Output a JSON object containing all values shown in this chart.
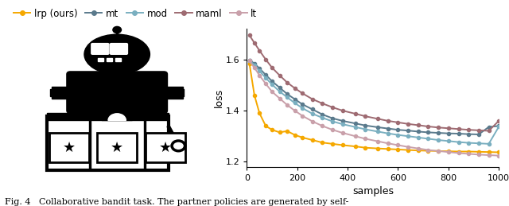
{
  "legend_entries": [
    "lrp (ours)",
    "mt",
    "mod",
    "maml",
    "lt"
  ],
  "colors": {
    "lrp": "#f5a800",
    "mt": "#5a7a8c",
    "mod": "#7aafc0",
    "maml": "#9e6b72",
    "lt": "#c9a0aa"
  },
  "xlabel": "samples",
  "ylabel": "loss",
  "xlim": [
    0,
    1000
  ],
  "ylim": [
    1.18,
    1.72
  ],
  "yticks": [
    1.2,
    1.4,
    1.6
  ],
  "xticks": [
    0,
    200,
    400,
    600,
    800,
    1000
  ],
  "caption": "Fig. 4   Collaborative bandit task. The partner policies are generated by self-",
  "lrp_x": [
    10,
    30,
    50,
    75,
    100,
    130,
    160,
    190,
    220,
    260,
    300,
    340,
    380,
    430,
    470,
    520,
    560,
    600,
    640,
    680,
    720,
    760,
    800,
    840,
    880,
    920,
    960,
    1000
  ],
  "lrp_y": [
    1.585,
    1.46,
    1.39,
    1.34,
    1.325,
    1.315,
    1.32,
    1.305,
    1.295,
    1.285,
    1.275,
    1.27,
    1.265,
    1.26,
    1.255,
    1.252,
    1.25,
    1.248,
    1.246,
    1.244,
    1.243,
    1.242,
    1.241,
    1.24,
    1.24,
    1.239,
    1.238,
    1.237
  ],
  "mt_x": [
    10,
    30,
    50,
    75,
    100,
    130,
    160,
    190,
    220,
    260,
    300,
    340,
    380,
    430,
    470,
    520,
    560,
    600,
    640,
    680,
    720,
    760,
    800,
    840,
    880,
    920,
    960,
    1000
  ],
  "mt_y": [
    1.597,
    1.585,
    1.565,
    1.54,
    1.515,
    1.49,
    1.465,
    1.445,
    1.425,
    1.405,
    1.385,
    1.37,
    1.36,
    1.35,
    1.342,
    1.335,
    1.33,
    1.325,
    1.322,
    1.318,
    1.315,
    1.313,
    1.311,
    1.31,
    1.308,
    1.307,
    1.336,
    1.34
  ],
  "mod_x": [
    10,
    30,
    50,
    75,
    100,
    130,
    160,
    190,
    220,
    260,
    300,
    340,
    380,
    430,
    470,
    520,
    560,
    600,
    640,
    680,
    720,
    760,
    800,
    840,
    880,
    920,
    960,
    1000
  ],
  "mod_y": [
    1.597,
    1.578,
    1.555,
    1.528,
    1.502,
    1.475,
    1.452,
    1.43,
    1.41,
    1.388,
    1.372,
    1.358,
    1.347,
    1.336,
    1.327,
    1.318,
    1.311,
    1.305,
    1.3,
    1.295,
    1.29,
    1.285,
    1.281,
    1.277,
    1.274,
    1.272,
    1.27,
    1.337
  ],
  "maml_x": [
    10,
    30,
    50,
    75,
    100,
    130,
    160,
    190,
    220,
    260,
    300,
    340,
    380,
    430,
    470,
    520,
    560,
    600,
    640,
    680,
    720,
    760,
    800,
    840,
    880,
    920,
    960,
    1000
  ],
  "maml_y": [
    1.695,
    1.665,
    1.635,
    1.6,
    1.568,
    1.538,
    1.51,
    1.488,
    1.468,
    1.445,
    1.428,
    1.413,
    1.4,
    1.388,
    1.378,
    1.368,
    1.36,
    1.354,
    1.348,
    1.343,
    1.338,
    1.334,
    1.331,
    1.328,
    1.325,
    1.323,
    1.321,
    1.36
  ],
  "lt_x": [
    10,
    30,
    50,
    75,
    100,
    130,
    160,
    190,
    220,
    260,
    300,
    340,
    380,
    430,
    470,
    520,
    560,
    600,
    640,
    680,
    720,
    760,
    800,
    840,
    880,
    920,
    960,
    1000
  ],
  "lt_y": [
    1.595,
    1.568,
    1.538,
    1.505,
    1.474,
    1.448,
    1.422,
    1.4,
    1.38,
    1.358,
    1.34,
    1.325,
    1.313,
    1.3,
    1.29,
    1.28,
    1.272,
    1.265,
    1.258,
    1.252,
    1.246,
    1.242,
    1.238,
    1.234,
    1.231,
    1.228,
    1.226,
    1.224
  ],
  "marker_size": 3.0,
  "linewidth": 1.4,
  "background_color": "#ffffff"
}
